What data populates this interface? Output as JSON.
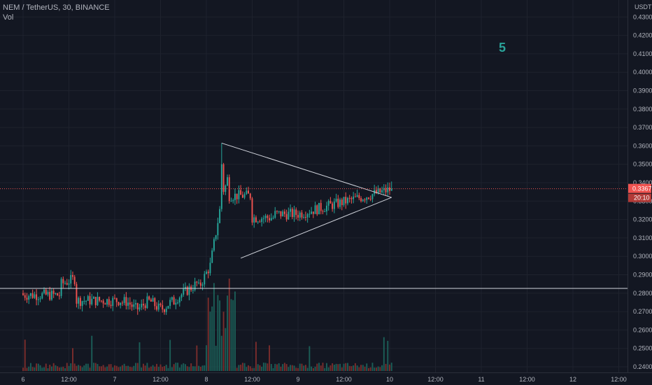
{
  "header": {
    "symbol_line": "NEM / TetherUS, 30, BINANCE",
    "volume_label": "Vol"
  },
  "annotation": {
    "pattern_number": "5"
  },
  "price_axis": {
    "currency": "USDT",
    "current_price": "0.3367",
    "countdown": "20:10"
  },
  "colors": {
    "background": "#131722",
    "bull": "#26a69a",
    "bear": "#ef5350",
    "grid": "#1e222d",
    "axis_text": "#b2b5be",
    "drawing_lines": "#d1d4dc",
    "price_line": "#ef5350",
    "volume_bull": "#1b5e57",
    "volume_bear": "#7a2d2c"
  },
  "chart_data": {
    "type": "candlestick",
    "title": "NEM / TetherUS, 30, BINANCE",
    "timeframe": "30",
    "exchange": "BINANCE",
    "x_ticks": [
      "6",
      "12:00",
      "7",
      "12:00",
      "8",
      "12:00",
      "9",
      "12:00",
      "10",
      "12:00",
      "11",
      "12:00",
      "12",
      "12:00"
    ],
    "y_ticks": [
      "0.2400",
      "0.2500",
      "0.2600",
      "0.2700",
      "0.2800",
      "0.2900",
      "0.3000",
      "0.3100",
      "0.3200",
      "0.3300",
      "0.3400",
      "0.3500",
      "0.3600",
      "0.3700",
      "0.3800",
      "0.3900",
      "0.4000",
      "0.4100",
      "0.4200",
      "0.4300"
    ],
    "ylim": [
      0.2365,
      0.4335
    ],
    "log_scale": false,
    "grid": true,
    "horizontal_level": 0.2826,
    "last_price": 0.3367,
    "triangle": {
      "upper_line": {
        "from": [
          "Aug 8 04:00",
          0.3615
        ],
        "to": [
          "Aug 10 00:30",
          0.332
        ]
      },
      "lower_line": {
        "from": [
          "Aug 8 09:00",
          0.299
        ],
        "to": [
          "Aug 10 00:30",
          0.332
        ]
      }
    },
    "series": [
      {
        "segment": "Aug 6 (pre-breakout range)",
        "approx_low": 0.2705,
        "approx_high": 0.289
      },
      {
        "segment": "Aug 7 (base)",
        "approx_low": 0.2695,
        "approx_high": 0.2895
      },
      {
        "segment": "Aug 8 breakout",
        "open": 0.283,
        "high": 0.3615,
        "low": 0.28,
        "close": 0.335
      },
      {
        "segment": "Aug 8-10 symmetrical triangle",
        "approx_low": 0.3065,
        "approx_high": 0.342
      }
    ]
  }
}
